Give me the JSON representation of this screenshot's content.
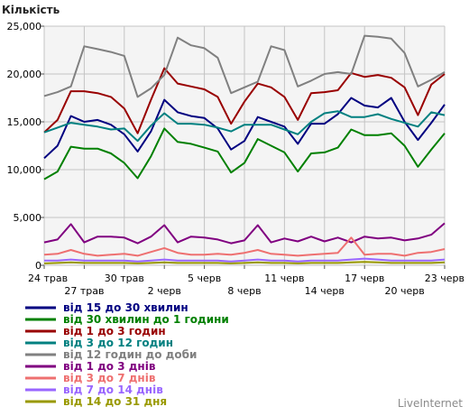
{
  "chart_data": {
    "type": "line",
    "ylabel": "Кількість",
    "ylim": [
      0,
      25000
    ],
    "yticks": [
      "0",
      "5,000",
      "10,000",
      "15,000",
      "20,000",
      "25,000"
    ],
    "ytick_values": [
      0,
      5000,
      10000,
      15000,
      20000,
      25000
    ],
    "x_index_range": [
      0,
      30
    ],
    "x_labels": [
      {
        "label": "24 трав",
        "index": 0,
        "row": 1
      },
      {
        "label": "27 трав",
        "index": 3,
        "row": 2
      },
      {
        "label": "30 трав",
        "index": 6,
        "row": 1
      },
      {
        "label": "2 черв",
        "index": 9,
        "row": 2
      },
      {
        "label": "5 черв",
        "index": 12,
        "row": 1
      },
      {
        "label": "8 черв",
        "index": 15,
        "row": 2
      },
      {
        "label": "11 черв",
        "index": 18,
        "row": 1
      },
      {
        "label": "14 черв",
        "index": 21,
        "row": 2
      },
      {
        "label": "17 черв",
        "index": 24,
        "row": 1
      },
      {
        "label": "20 черв",
        "index": 27,
        "row": 2
      },
      {
        "label": "23 черв",
        "index": 30,
        "row": 1
      }
    ],
    "grid": true,
    "legend_position": "bottom-left",
    "series": [
      {
        "name": "від 15 до 30 хвилин",
        "color": "#000080",
        "values": [
          11200,
          12500,
          15600,
          15000,
          15200,
          14700,
          13700,
          11900,
          14000,
          17300,
          16000,
          15600,
          15400,
          14300,
          12100,
          13000,
          15500,
          15000,
          14500,
          12700,
          14800,
          14800,
          15800,
          17500,
          16700,
          16500,
          17500,
          15000,
          13100,
          14900,
          16800
        ]
      },
      {
        "name": "від 30 хвилин до 1 години",
        "color": "#008000",
        "values": [
          9000,
          9800,
          12400,
          12200,
          12200,
          11700,
          10700,
          9100,
          11400,
          14300,
          12900,
          12700,
          12300,
          11900,
          9700,
          10700,
          13200,
          12500,
          11800,
          9800,
          11700,
          11800,
          12300,
          14200,
          13600,
          13600,
          13800,
          12500,
          10300,
          12100,
          13800
        ]
      },
      {
        "name": "від 1 до 3 годин",
        "color": "#990000",
        "values": [
          13900,
          15200,
          18200,
          18200,
          18000,
          17600,
          16400,
          13800,
          17300,
          20600,
          19000,
          18700,
          18400,
          17600,
          14800,
          17100,
          19000,
          18600,
          17600,
          15200,
          18000,
          18100,
          18300,
          20100,
          19700,
          19900,
          19600,
          18600,
          15700,
          18900,
          20000
        ]
      },
      {
        "name": "від 3 до 12 годин",
        "color": "#008080",
        "values": [
          13900,
          14400,
          14900,
          14700,
          14500,
          14200,
          14300,
          13000,
          14600,
          15900,
          14800,
          14800,
          14700,
          14400,
          14000,
          14700,
          14700,
          14700,
          14200,
          13700,
          15000,
          15900,
          16100,
          15500,
          15500,
          15800,
          15300,
          14900,
          14500,
          16000,
          15700
        ]
      },
      {
        "name": "від 12 годин до доби",
        "color": "#808080",
        "values": [
          17700,
          18100,
          18700,
          22900,
          22600,
          22300,
          21900,
          17600,
          18500,
          19900,
          23800,
          23000,
          22700,
          21700,
          18000,
          18600,
          19200,
          22900,
          22500,
          18700,
          19300,
          20000,
          20200,
          20000,
          24000,
          23900,
          23700,
          22200,
          18700,
          19400,
          20200
        ]
      },
      {
        "name": "від 1 до 3 днів",
        "color": "#800080",
        "values": [
          2400,
          2700,
          4300,
          2400,
          3000,
          3000,
          2900,
          2300,
          3000,
          4200,
          2400,
          3000,
          2900,
          2700,
          2300,
          2600,
          4200,
          2400,
          2800,
          2500,
          3000,
          2500,
          2900,
          2400,
          3000,
          2800,
          2900,
          2600,
          2800,
          3200,
          4400
        ]
      },
      {
        "name": "від 3 до 7 днів",
        "color": "#ee7070",
        "values": [
          1100,
          1200,
          1600,
          1200,
          1000,
          1100,
          1200,
          1000,
          1400,
          1800,
          1300,
          1100,
          1100,
          1200,
          1100,
          1300,
          1600,
          1200,
          1100,
          1000,
          1100,
          1200,
          1300,
          2900,
          1100,
          1200,
          1200,
          1000,
          1300,
          1400,
          1700
        ]
      },
      {
        "name": "від 7 до 14 днів",
        "color": "#9966ff",
        "values": [
          500,
          500,
          600,
          500,
          500,
          500,
          500,
          400,
          500,
          600,
          500,
          500,
          500,
          500,
          400,
          500,
          600,
          500,
          500,
          400,
          500,
          500,
          500,
          600,
          700,
          600,
          500,
          500,
          500,
          500,
          600
        ]
      },
      {
        "name": "від 14 до 31 дня",
        "color": "#999900",
        "values": [
          200,
          250,
          300,
          250,
          250,
          250,
          250,
          200,
          250,
          300,
          250,
          250,
          250,
          250,
          200,
          250,
          300,
          250,
          250,
          200,
          250,
          250,
          250,
          300,
          350,
          300,
          250,
          250,
          250,
          250,
          300
        ]
      }
    ]
  },
  "brand": "LiveInternet"
}
